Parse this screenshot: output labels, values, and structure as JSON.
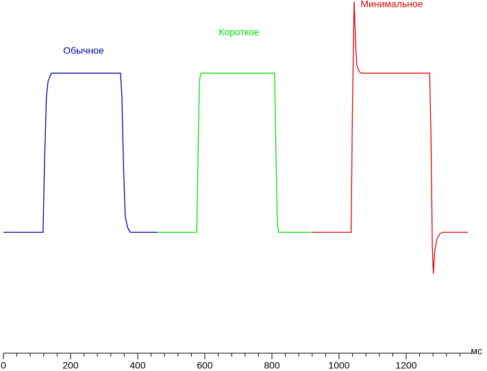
{
  "chart_data": {
    "type": "line",
    "x_label": "мс",
    "xlim": [
      0,
      1400
    ],
    "xticks": [
      0,
      200,
      400,
      600,
      800,
      1000,
      1200
    ],
    "xminorticks": [
      40,
      80,
      120,
      160,
      240,
      280,
      320,
      360,
      440,
      480,
      520,
      560,
      640,
      680,
      720,
      760,
      840,
      880,
      920,
      960,
      1040,
      1080,
      1120,
      1160,
      1240,
      1280,
      1320,
      1360
    ],
    "ylim": [
      -76,
      146
    ],
    "series": [
      {
        "name": "Обычное",
        "color": "#0000a0",
        "x": [
          0,
          118,
          122,
          128,
          133,
          143,
          349,
          353,
          358,
          363,
          370,
          378,
          460
        ],
        "values": [
          0,
          0,
          40,
          85,
          95,
          100,
          100,
          85,
          40,
          10,
          3,
          0,
          0
        ]
      },
      {
        "name": "Короткое",
        "color": "#00e000",
        "x": [
          460,
          576,
          580,
          584,
          588,
          808,
          812,
          816,
          820,
          920
        ],
        "values": [
          0,
          0,
          50,
          95,
          100,
          100,
          50,
          5,
          0,
          0
        ]
      },
      {
        "name": "Минимальное",
        "color": "#e00000",
        "x": [
          920,
          1036,
          1040,
          1045,
          1049,
          1053,
          1060,
          1066,
          1270,
          1274,
          1278,
          1281,
          1285,
          1292,
          1300,
          1308,
          1384
        ],
        "values": [
          0,
          0,
          80,
          145,
          120,
          105,
          101,
          100,
          100,
          60,
          -10,
          -26,
          -12,
          -4,
          -1,
          0,
          0
        ]
      }
    ]
  }
}
